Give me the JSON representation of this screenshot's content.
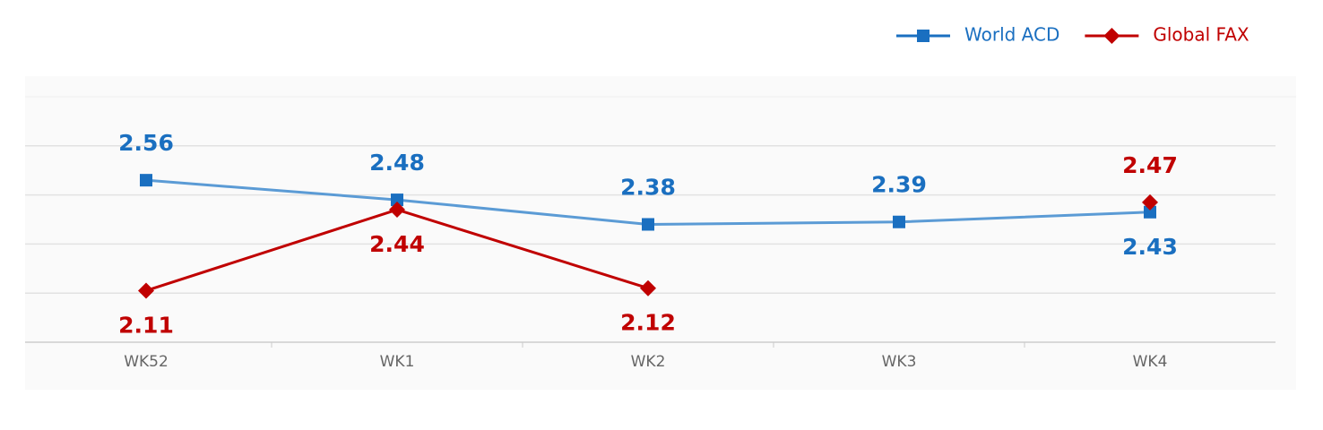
{
  "chart_data": {
    "type": "line",
    "categories": [
      "WK52",
      "WK1",
      "WK2",
      "WK3",
      "WK4"
    ],
    "series": [
      {
        "name": "World ACD",
        "color": "#1a6fc0",
        "line_color": "#5b9bd5",
        "marker": "square",
        "values": [
          2.56,
          2.48,
          2.38,
          2.39,
          2.43
        ]
      },
      {
        "name": "Global FAX",
        "color": "#c00000",
        "line_color": "#c00000",
        "marker": "diamond",
        "values": [
          2.11,
          2.44,
          2.12,
          null,
          2.47
        ]
      }
    ],
    "ylim": [
      1.9,
      2.9
    ],
    "yticks": [
      1.9,
      2.1,
      2.3,
      2.5,
      2.7
    ],
    "grid": true,
    "legend": "top-right"
  }
}
